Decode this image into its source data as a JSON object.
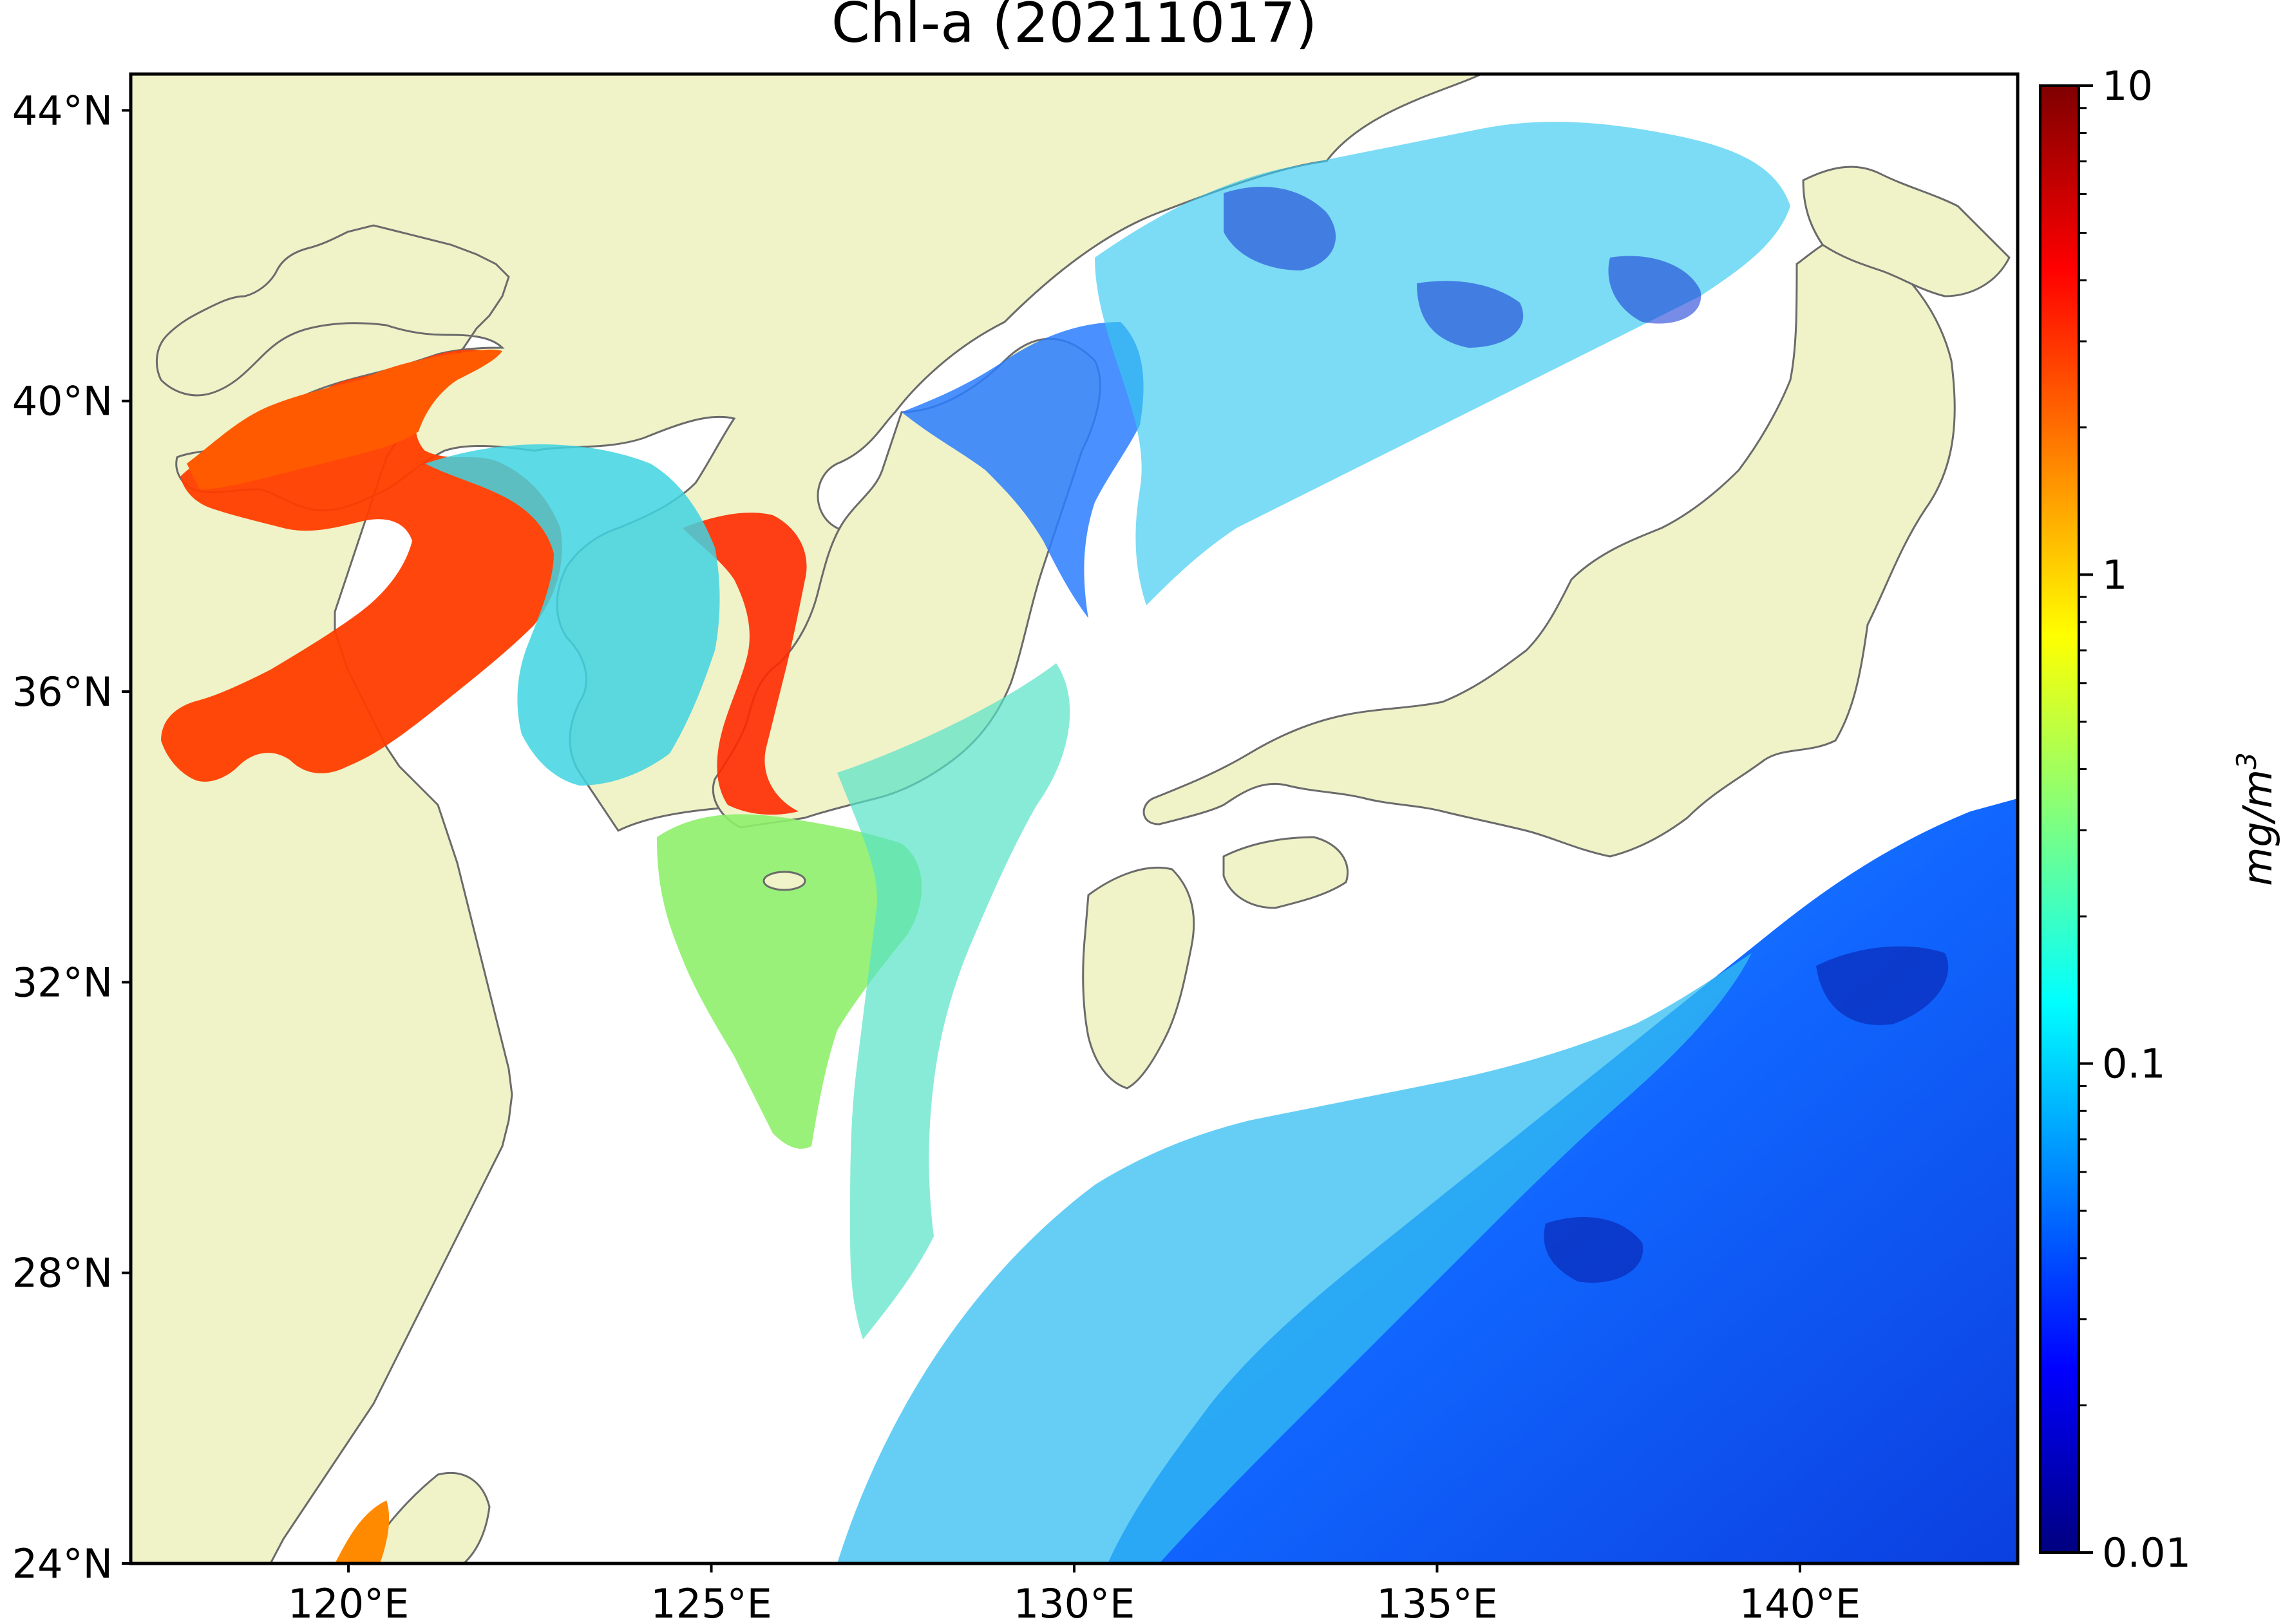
{
  "title": "Chl-a (20211017)",
  "map": {
    "lon_range": [
      117,
      143
    ],
    "lat_range": [
      24,
      44.5
    ],
    "x_ticks": [
      {
        "value": 120,
        "label": "120°E"
      },
      {
        "value": 125,
        "label": "125°E"
      },
      {
        "value": 130,
        "label": "130°E"
      },
      {
        "value": 135,
        "label": "135°E"
      },
      {
        "value": 140,
        "label": "140°E"
      }
    ],
    "y_ticks": [
      {
        "value": 24,
        "label": "24°N"
      },
      {
        "value": 28,
        "label": "28°N"
      },
      {
        "value": 32,
        "label": "32°N"
      },
      {
        "value": 36,
        "label": "36°N"
      },
      {
        "value": 40,
        "label": "40°N"
      },
      {
        "value": 44,
        "label": "44°N"
      }
    ],
    "land_color": "#f0f2c8",
    "coastline_color": "#6b6b6b",
    "no_data_color": "#ffffff"
  },
  "colorbar": {
    "colormap": "jet",
    "scale": "log",
    "range": [
      0.01,
      10
    ],
    "ticks": [
      {
        "value": 10,
        "label": "10"
      },
      {
        "value": 1,
        "label": "1"
      },
      {
        "value": 0.1,
        "label": "0.1"
      },
      {
        "value": 0.01,
        "label": "0.01"
      }
    ],
    "unit_base": "mg/m",
    "unit_exp": "3",
    "stops": [
      "#00007f",
      "#0000ff",
      "#007fff",
      "#00ffff",
      "#7fff7f",
      "#ffff00",
      "#ff7f00",
      "#ff0000",
      "#7f0000"
    ]
  }
}
